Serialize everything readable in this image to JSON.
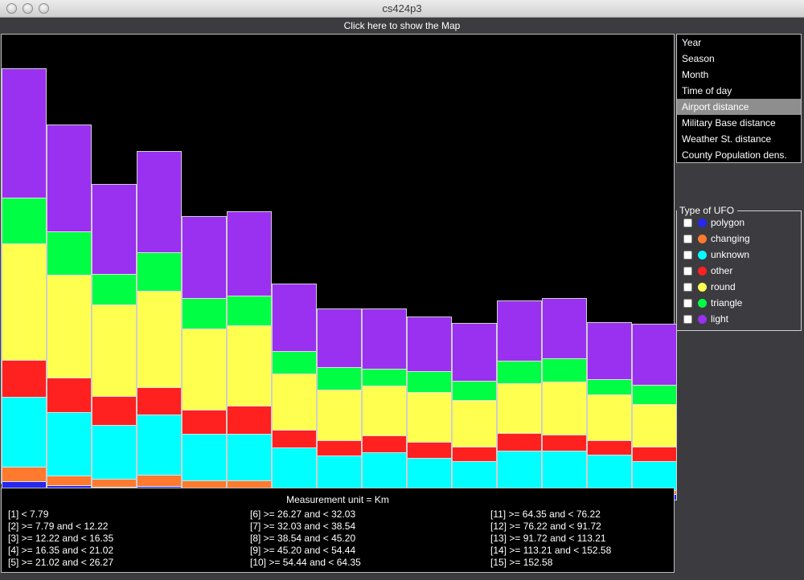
{
  "window": {
    "title": "cs424p3"
  },
  "map_button": {
    "label": "Click here to show the Map"
  },
  "menu": {
    "items": [
      "Year",
      "Season",
      "Month",
      "Time of day",
      "Airport distance",
      "Military Base distance",
      "Weather St. distance",
      "County Population dens."
    ],
    "selected": "Airport distance"
  },
  "legend": {
    "title": "Type of UFO",
    "items": [
      {
        "label": "polygon",
        "color": "#2727f0",
        "checked": true
      },
      {
        "label": "changing",
        "color": "#ff7a2e",
        "checked": true
      },
      {
        "label": "unknown",
        "color": "#00ffff",
        "checked": true
      },
      {
        "label": "other",
        "color": "#ff2020",
        "checked": true
      },
      {
        "label": "round",
        "color": "#ffff50",
        "checked": true
      },
      {
        "label": "triangle",
        "color": "#00ff44",
        "checked": true
      },
      {
        "label": "light",
        "color": "#9a30f0",
        "checked": true
      }
    ]
  },
  "chart_data": {
    "type": "bar",
    "stacked": true,
    "categories": [
      "1",
      "2",
      "3",
      "4",
      "5",
      "6",
      "7",
      "8",
      "9",
      "10",
      "11",
      "12",
      "13",
      "14",
      "15"
    ],
    "series_order": [
      "polygon",
      "changing",
      "unknown",
      "other",
      "round",
      "triangle",
      "light"
    ],
    "series": [
      {
        "name": "polygon",
        "values": [
          24,
          19,
          17,
          18,
          16,
          15,
          9,
          8,
          9,
          8,
          7,
          9,
          9,
          8,
          8
        ]
      },
      {
        "name": "changing",
        "values": [
          18,
          12,
          10,
          14,
          9,
          10,
          7,
          6,
          7,
          7,
          7,
          7,
          7,
          7,
          5
        ]
      },
      {
        "name": "unknown",
        "values": [
          87,
          79,
          67,
          75,
          58,
          58,
          50,
          42,
          44,
          38,
          35,
          46,
          46,
          42,
          36
        ]
      },
      {
        "name": "other",
        "values": [
          46,
          43,
          36,
          34,
          30,
          35,
          22,
          19,
          21,
          20,
          18,
          22,
          20,
          18,
          18
        ]
      },
      {
        "name": "round",
        "values": [
          145,
          128,
          114,
          120,
          101,
          100,
          70,
          63,
          62,
          62,
          58,
          62,
          66,
          57,
          53
        ]
      },
      {
        "name": "triangle",
        "values": [
          57,
          54,
          38,
          48,
          38,
          37,
          28,
          28,
          21,
          26,
          24,
          28,
          29,
          19,
          24
        ]
      },
      {
        "name": "light",
        "values": [
          161,
          133,
          112,
          126,
          102,
          105,
          84,
          73,
          75,
          68,
          72,
          75,
          75,
          71,
          76
        ]
      }
    ]
  },
  "info": {
    "unit_label": "Measurement unit = Km",
    "ranges": [
      "[1] < 7.79",
      "[2] >= 7.79 and < 12.22",
      "[3] >= 12.22 and < 16.35",
      "[4] >= 16.35 and < 21.02",
      "[5] >= 21.02 and < 26.27",
      "[6] >= 26.27 and < 32.03",
      "[7] >= 32.03 and < 38.54",
      "[8] >= 38.54 and < 45.20",
      "[9] >= 45.20 and < 54.44",
      "[10] >= 54.44 and < 64.35",
      "[11] >= 64.35 and < 76.22",
      "[12] >= 76.22 and < 91.72",
      "[13] >= 91.72 and < 113.21",
      "[14] >= 113.21 and < 152.58",
      "[15] >= 152.58"
    ]
  }
}
